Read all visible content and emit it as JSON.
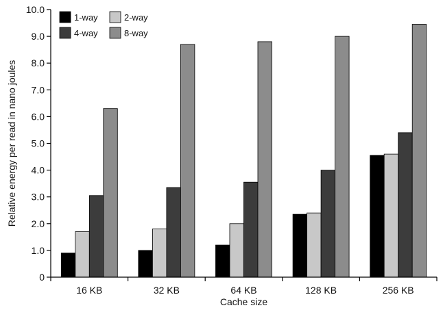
{
  "chart_data": {
    "type": "bar",
    "title": "",
    "xlabel": "Cache size",
    "ylabel": "Relative energy per read in nano joules",
    "ylim": [
      0,
      10
    ],
    "ytick_labels": [
      "0",
      "1.0",
      "2.0",
      "3.0",
      "4.0",
      "5.0",
      "6.0",
      "7.0",
      "8.0",
      "9.0",
      "10.0"
    ],
    "categories": [
      "16 KB",
      "32 KB",
      "64 KB",
      "128 KB",
      "256 KB"
    ],
    "series": [
      {
        "name": "1-way",
        "color": "#000000",
        "values": [
          0.9,
          1.0,
          1.2,
          2.35,
          4.55
        ]
      },
      {
        "name": "2-way",
        "color": "#c8c8c8",
        "values": [
          1.7,
          1.8,
          2.0,
          2.4,
          4.6
        ]
      },
      {
        "name": "4-way",
        "color": "#3c3c3c",
        "values": [
          3.05,
          3.35,
          3.55,
          4.0,
          5.4
        ]
      },
      {
        "name": "8-way",
        "color": "#8c8c8c",
        "values": [
          6.3,
          8.7,
          8.8,
          9.0,
          9.45
        ]
      }
    ],
    "grid": false,
    "legend_position": "top-left"
  }
}
